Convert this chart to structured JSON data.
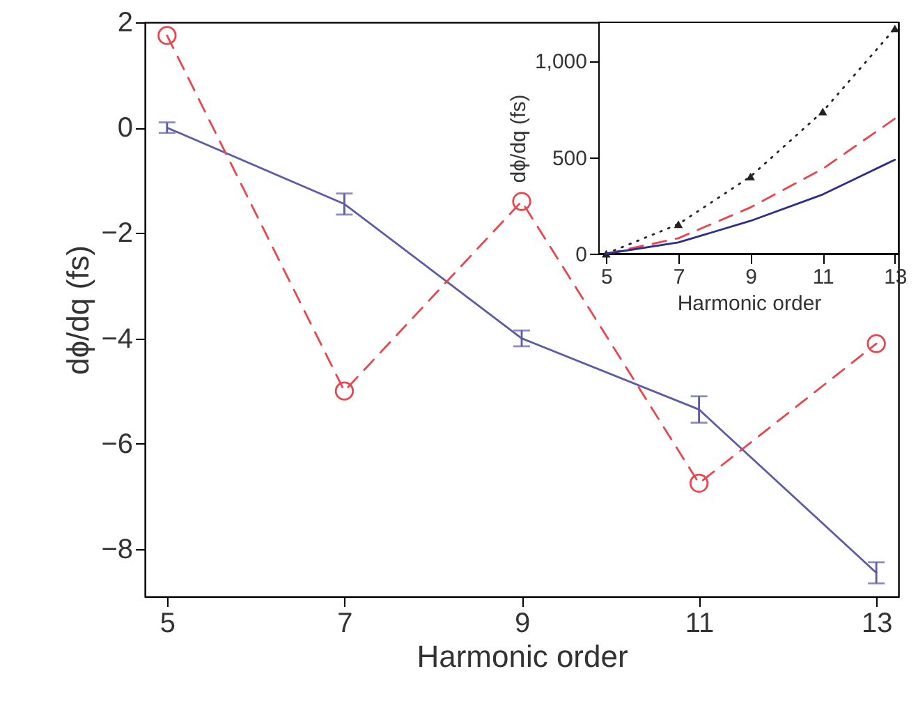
{
  "chart_data": [
    {
      "type": "line",
      "xlabel": "Harmonic order",
      "ylabel": "dϕ/dq (fs)",
      "x": [
        5,
        7,
        9,
        11,
        13
      ],
      "xlim": [
        4.75,
        13.25
      ],
      "xticks": [
        5,
        7,
        9,
        11,
        13
      ],
      "ylim": [
        -8.9,
        2
      ],
      "yticks": [
        2,
        0,
        {
          "value": -2,
          "label": "−2"
        },
        {
          "value": -4,
          "label": "−4"
        },
        {
          "value": -6,
          "label": "−6"
        },
        {
          "value": -8,
          "label": "−8"
        }
      ],
      "grid": false,
      "series": [
        {
          "color": "#5b5ba8",
          "values": [
            0,
            -1.45,
            -4.0,
            -5.35,
            -8.45
          ],
          "errors": [
            0.1,
            0.2,
            0.15,
            0.25,
            0.2
          ],
          "line_style": "solid",
          "marker": "none"
        },
        {
          "color": "#e8464e",
          "values": [
            1.75,
            -5.0,
            -1.4,
            -6.75,
            -4.1
          ],
          "line_style": "dashed",
          "marker": "circle"
        }
      ]
    },
    {
      "type": "line",
      "xlabel": "Harmonic order",
      "ylabel": "dϕ/dq (fs)",
      "x": [
        5,
        7,
        9,
        11,
        13
      ],
      "xlim": [
        4.8,
        13.1
      ],
      "xticks": [
        5,
        7,
        9,
        11,
        13
      ],
      "ylim": [
        0,
        1200
      ],
      "yticks": [
        0,
        500,
        {
          "value": 1000,
          "label": "1,000"
        }
      ],
      "grid": false,
      "series": [
        {
          "color": "#222222",
          "values": [
            0,
            153,
            400,
            737,
            1168
          ],
          "line_style": "dotted",
          "marker": "triangle"
        },
        {
          "color": "#e8464e",
          "values": [
            0,
            80,
            240,
            440,
            700
          ],
          "line_style": "dashed",
          "marker": "none"
        },
        {
          "color": "#2d2d8c",
          "values": [
            0,
            58,
            170,
            307,
            487
          ],
          "line_style": "solid",
          "marker": "none"
        }
      ]
    }
  ]
}
